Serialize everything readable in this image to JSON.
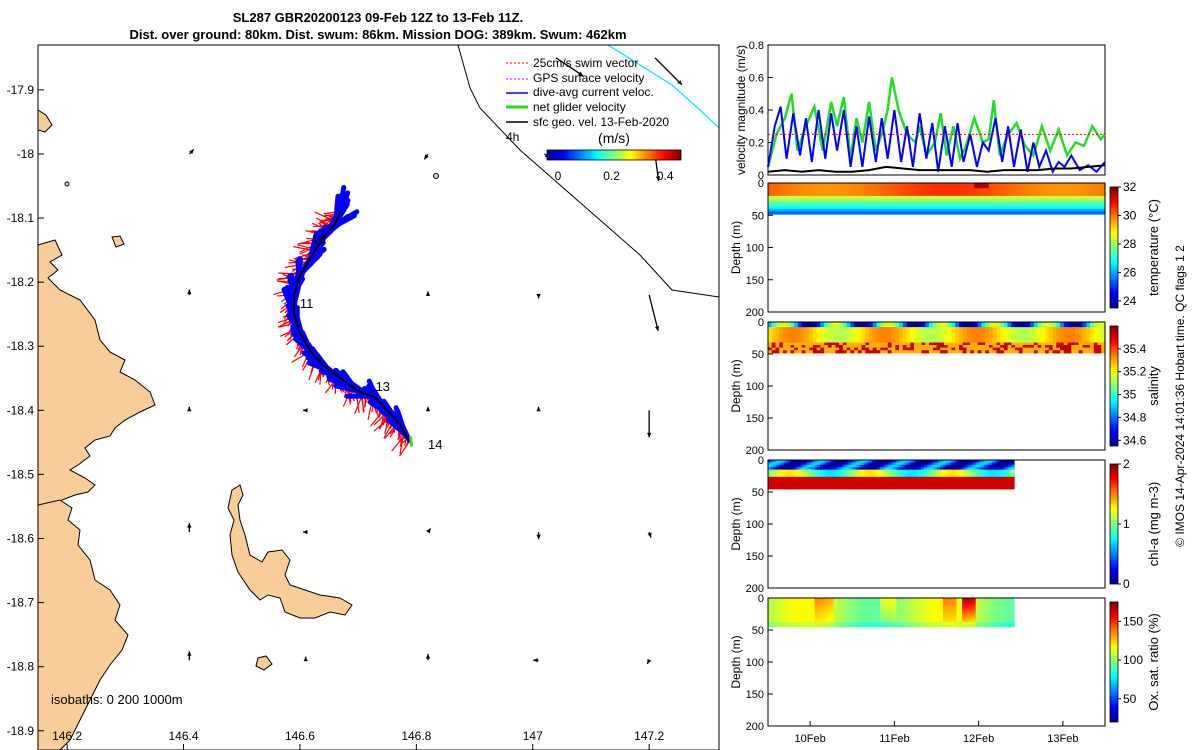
{
  "title": {
    "line1": "SL287 GBR20200123 09-Feb 12Z to 13-Feb 11Z.",
    "line2": "Dist. over ground: 80km. Dist. swum: 86km. Mission DOG: 389km. Swum: 462km"
  },
  "side_note": "© IMOS 14-Apr-2024 14:01:36 Hobart time. QC flags 1  2",
  "colors": {
    "land": "#f9cd98",
    "swim": "#ff0000",
    "gps": "#ff00ff",
    "dive_avg": "#0000ff",
    "net": "#22dd22",
    "geo": "#000000",
    "isobath_200": "#00e5ff"
  },
  "chart_data": [
    {
      "type": "map",
      "xlim": [
        146.15,
        147.32
      ],
      "ylim": [
        -18.93,
        -17.83
      ],
      "x_ticks": [
        "146.2",
        "146.4",
        "146.6",
        "146.8",
        "147",
        "147.2"
      ],
      "x_tick_values": [
        146.2,
        146.4,
        146.6,
        146.8,
        147.0,
        147.2
      ],
      "y_ticks": [
        "-17.9",
        "-18",
        "-18.1",
        "-18.2",
        "-18.3",
        "-18.4",
        "-18.5",
        "-18.6",
        "-18.7",
        "-18.8",
        "-18.9"
      ],
      "y_tick_values": [
        -17.9,
        -18.0,
        -18.1,
        -18.2,
        -18.3,
        -18.4,
        -18.5,
        -18.6,
        -18.7,
        -18.8,
        -18.9
      ],
      "legend": [
        {
          "label": "25cm/s swim vector",
          "key": "swim"
        },
        {
          "label": "GPS surface velocity",
          "key": "gps"
        },
        {
          "label": "dive-avg current veloc.",
          "key": "dive_avg"
        },
        {
          "label": "net glider velocity",
          "key": "net"
        },
        {
          "label": "sfc geo. vel. 13-Feb-2020",
          "key": "geo"
        }
      ],
      "legend_extra": "4h",
      "colorbar": {
        "label": "(m/s)",
        "ticks": [
          "0",
          "0.2",
          "0.4"
        ],
        "tick_values": [
          0,
          0.2,
          0.4
        ],
        "range": [
          0,
          0.5
        ]
      },
      "isobath_label": "isobaths: 0   200  1000m",
      "track": {
        "lon": [
          146.67,
          146.66,
          146.64,
          146.62,
          146.6,
          146.59,
          146.59,
          146.6,
          146.62,
          146.64,
          146.67,
          146.7,
          146.73,
          146.75,
          146.77,
          146.79
        ],
        "lat": [
          -18.09,
          -18.11,
          -18.13,
          -18.16,
          -18.19,
          -18.22,
          -18.25,
          -18.28,
          -18.31,
          -18.33,
          -18.35,
          -18.37,
          -18.38,
          -18.4,
          -18.42,
          -18.45
        ]
      },
      "day_labels": [
        {
          "text": "10",
          "lon": 146.62,
          "lat": -18.14
        },
        {
          "text": "11",
          "lon": 146.6,
          "lat": -18.24
        },
        {
          "text": "13",
          "lon": 146.73,
          "lat": -18.37
        },
        {
          "text": "14",
          "lon": 146.82,
          "lat": -18.46
        }
      ],
      "geo_vectors": [
        {
          "lon": 147.04,
          "lat": -17.85,
          "u": 0.03,
          "v": -0.02
        },
        {
          "lon": 147.21,
          "lat": -17.85,
          "u": 0.03,
          "v": -0.03
        },
        {
          "lon": 146.41,
          "lat": -18.0,
          "u": 0.005,
          "v": 0.005
        },
        {
          "lon": 146.82,
          "lat": -18.0,
          "u": -0.004,
          "v": -0.006
        },
        {
          "lon": 147.02,
          "lat": -18.0,
          "u": 0.006,
          "v": -0.004
        },
        {
          "lon": 147.21,
          "lat": -18.0,
          "u": 0.004,
          "v": -0.03
        },
        {
          "lon": 146.41,
          "lat": -18.22,
          "u": 0.0,
          "v": 0.006
        },
        {
          "lon": 146.82,
          "lat": -18.22,
          "u": 0.0,
          "v": 0.004
        },
        {
          "lon": 147.01,
          "lat": -18.22,
          "u": 0.0,
          "v": -0.004
        },
        {
          "lon": 147.2,
          "lat": -18.22,
          "u": 0.01,
          "v": -0.04
        },
        {
          "lon": 146.41,
          "lat": -18.4,
          "u": 0.0,
          "v": 0.004
        },
        {
          "lon": 146.61,
          "lat": -18.4,
          "u": -0.003,
          "v": 0.0
        },
        {
          "lon": 146.82,
          "lat": -18.4,
          "u": 0.0,
          "v": 0.004
        },
        {
          "lon": 147.01,
          "lat": -18.4,
          "u": 0.0,
          "v": 0.004
        },
        {
          "lon": 147.2,
          "lat": -18.4,
          "u": 0.0,
          "v": -0.03
        },
        {
          "lon": 146.41,
          "lat": -18.59,
          "u": 0.0,
          "v": 0.01
        },
        {
          "lon": 146.61,
          "lat": -18.59,
          "u": -0.003,
          "v": 0.0
        },
        {
          "lon": 146.82,
          "lat": -18.59,
          "u": 0.003,
          "v": 0.004
        },
        {
          "lon": 147.01,
          "lat": -18.59,
          "u": 0.0,
          "v": -0.008
        },
        {
          "lon": 147.2,
          "lat": -18.59,
          "u": 0.002,
          "v": -0.006
        },
        {
          "lon": 146.41,
          "lat": -18.79,
          "u": 0.0,
          "v": 0.01
        },
        {
          "lon": 146.61,
          "lat": -18.79,
          "u": 0.0,
          "v": 0.004
        },
        {
          "lon": 146.82,
          "lat": -18.79,
          "u": 0.0,
          "v": 0.007
        },
        {
          "lon": 147.01,
          "lat": -18.79,
          "u": -0.006,
          "v": 0.0
        },
        {
          "lon": 147.2,
          "lat": -18.79,
          "u": -0.002,
          "v": -0.004
        }
      ]
    },
    {
      "type": "line",
      "ylabel": "velocity magnitude (m/s)",
      "ylim": [
        0,
        0.8
      ],
      "y_ticks": [
        "0",
        "0.2",
        "0.4",
        "0.6",
        "0.8"
      ],
      "x_ticks": [
        "10Feb",
        "11Feb",
        "12Feb",
        "13Feb"
      ],
      "xlim": [
        9.5,
        13.5
      ],
      "series": [
        {
          "key": "net",
          "x": [
            9.5,
            9.6,
            9.7,
            9.78,
            9.85,
            9.95,
            10.05,
            10.15,
            10.25,
            10.32,
            10.4,
            10.48,
            10.55,
            10.62,
            10.7,
            10.78,
            10.85,
            10.92,
            10.97,
            11.05,
            11.15,
            11.25,
            11.3,
            11.38,
            11.48,
            11.55,
            11.62,
            11.7,
            11.78,
            11.85,
            11.95,
            12.05,
            12.12,
            12.18,
            12.25,
            12.35,
            12.45,
            12.55,
            12.65,
            12.75,
            12.85,
            12.95,
            13.05,
            13.15,
            13.25,
            13.35,
            13.45,
            13.5
          ],
          "values": [
            0.05,
            0.25,
            0.35,
            0.5,
            0.15,
            0.3,
            0.42,
            0.15,
            0.45,
            0.3,
            0.48,
            0.1,
            0.35,
            0.2,
            0.45,
            0.15,
            0.25,
            0.4,
            0.6,
            0.4,
            0.25,
            0.2,
            0.3,
            0.12,
            0.2,
            0.38,
            0.12,
            0.3,
            0.1,
            0.18,
            0.35,
            0.2,
            0.22,
            0.46,
            0.12,
            0.25,
            0.32,
            0.18,
            0.12,
            0.3,
            0.15,
            0.28,
            0.12,
            0.2,
            0.18,
            0.3,
            0.22,
            0.25
          ]
        },
        {
          "key": "dive_avg",
          "x": [
            9.5,
            9.58,
            9.65,
            9.72,
            9.8,
            9.88,
            9.95,
            10.02,
            10.1,
            10.18,
            10.25,
            10.32,
            10.4,
            10.48,
            10.55,
            10.62,
            10.7,
            10.78,
            10.85,
            10.92,
            11.0,
            11.08,
            11.15,
            11.22,
            11.3,
            11.38,
            11.45,
            11.52,
            11.6,
            11.68,
            11.75,
            11.82,
            11.9,
            11.98,
            12.05,
            12.12,
            12.2,
            12.28,
            12.35,
            12.42,
            12.5,
            12.58,
            12.65,
            12.72,
            12.8,
            12.88,
            12.95,
            13.02,
            13.1,
            13.2,
            13.3,
            13.4,
            13.5
          ],
          "values": [
            0.05,
            0.3,
            0.42,
            0.1,
            0.38,
            0.12,
            0.35,
            0.08,
            0.4,
            0.1,
            0.38,
            0.15,
            0.4,
            0.05,
            0.3,
            0.05,
            0.36,
            0.08,
            0.35,
            0.1,
            0.4,
            0.08,
            0.3,
            0.05,
            0.38,
            0.1,
            0.32,
            0.02,
            0.3,
            0.05,
            0.32,
            0.08,
            0.25,
            0.05,
            0.2,
            0.15,
            0.35,
            0.08,
            0.3,
            0.05,
            0.28,
            0.02,
            0.2,
            0.05,
            0.15,
            0.02,
            0.08,
            0.05,
            0.12,
            0.03,
            0.06,
            0.02,
            0.08
          ]
        },
        {
          "key": "geo",
          "x": [
            9.5,
            9.7,
            9.9,
            10.1,
            10.3,
            10.5,
            10.7,
            10.9,
            11.1,
            11.3,
            11.5,
            11.7,
            11.9,
            12.1,
            12.3,
            12.5,
            12.7,
            12.9,
            13.1,
            13.3,
            13.5
          ],
          "values": [
            0.02,
            0.03,
            0.02,
            0.03,
            0.02,
            0.02,
            0.03,
            0.05,
            0.04,
            0.03,
            0.03,
            0.03,
            0.03,
            0.02,
            0.03,
            0.03,
            0.03,
            0.04,
            0.04,
            0.05,
            0.06
          ]
        },
        {
          "key": "swim",
          "x": [
            9.5,
            13.5
          ],
          "values": [
            0.25,
            0.25
          ]
        }
      ]
    },
    {
      "type": "heatmap",
      "key": "temperature",
      "colorbar_label": "temperature (°C)",
      "cb_ticks": [
        "24",
        "26",
        "28",
        "30",
        "32"
      ],
      "cb_range": [
        23.5,
        32
      ],
      "ylabel": "Depth (m)",
      "y_ticks": [
        "0",
        "50",
        "100",
        "150",
        "200"
      ],
      "ylim": [
        0,
        200
      ],
      "x_extent": [
        9.5,
        13.5
      ],
      "bottom_depth": 48
    },
    {
      "type": "heatmap",
      "key": "salinity",
      "colorbar_label": "salinity",
      "cb_ticks": [
        "34.6",
        "34.8",
        "35",
        "35.2",
        "35.4"
      ],
      "cb_range": [
        34.55,
        35.6
      ],
      "ylabel": "Depth (m)",
      "y_ticks": [
        "0",
        "50",
        "100",
        "150",
        "200"
      ],
      "ylim": [
        0,
        200
      ],
      "x_extent": [
        9.5,
        13.5
      ],
      "bottom_depth": 48
    },
    {
      "type": "heatmap",
      "key": "chla",
      "colorbar_label": "chl-a (mg m-3)",
      "cb_ticks": [
        "0",
        "1",
        "2"
      ],
      "cb_range": [
        0,
        2
      ],
      "ylabel": "Depth (m)",
      "y_ticks": [
        "0",
        "50",
        "100",
        "150",
        "200"
      ],
      "ylim": [
        0,
        200
      ],
      "x_extent": [
        9.5,
        12.42
      ],
      "bottom_depth": 45
    },
    {
      "type": "heatmap",
      "key": "oxygen",
      "colorbar_label": "Ox. sat. ratio (%)",
      "cb_ticks": [
        "50",
        "100",
        "150"
      ],
      "cb_range": [
        20,
        175
      ],
      "ylabel": "Depth (m)",
      "y_ticks": [
        "0",
        "50",
        "100",
        "150",
        "200"
      ],
      "ylim": [
        0,
        200
      ],
      "x_extent": [
        9.5,
        12.42
      ],
      "bottom_depth": 45
    }
  ]
}
